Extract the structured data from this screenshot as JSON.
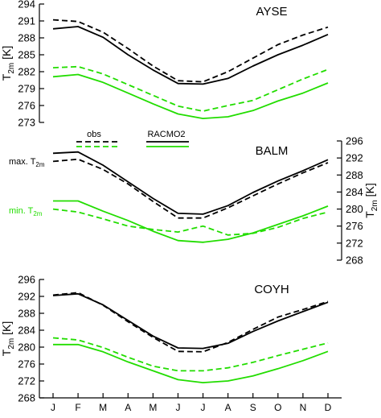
{
  "chart_data": {
    "type": "line",
    "categories": [
      "J",
      "F",
      "M",
      "A",
      "M",
      "J",
      "J",
      "A",
      "S",
      "O",
      "N",
      "D"
    ],
    "line_styles": {
      "obs": "dashed",
      "RACMO2": "solid",
      "max_color": "#000000",
      "min_color": "#22dd00"
    },
    "legend": {
      "obs": "obs",
      "racmo": "RACMO2",
      "max_label": "max. T",
      "max_sub": "2m",
      "min_label": "min. T",
      "min_sub": "2m"
    },
    "panels": [
      {
        "station": "AYSE",
        "axis_side": "left",
        "ylabel": "T",
        "ylabel_sub": "2m",
        "ylabel_unit": "[K]",
        "ylim": [
          273,
          294
        ],
        "yticks": [
          "273",
          "276",
          "279",
          "282",
          "285",
          "288",
          "291",
          "294"
        ],
        "series": [
          {
            "name": "obs",
            "variable": "max",
            "values": [
              291.2,
              290.9,
              289.0,
              286.1,
              283.0,
              280.4,
              280.2,
              282.0,
              284.4,
              286.8,
              288.5,
              289.9
            ]
          },
          {
            "name": "RACMO2",
            "variable": "max",
            "values": [
              289.6,
              290.0,
              288.1,
              285.0,
              282.3,
              279.9,
              279.8,
              280.8,
              283.0,
              285.0,
              286.7,
              288.6
            ]
          },
          {
            "name": "obs",
            "variable": "min",
            "values": [
              282.7,
              282.9,
              281.6,
              279.7,
              277.8,
              275.9,
              275.0,
              276.0,
              276.9,
              278.8,
              280.7,
              282.4
            ]
          },
          {
            "name": "RACMO2",
            "variable": "min",
            "values": [
              281.1,
              281.5,
              280.1,
              278.2,
              276.3,
              274.5,
              273.7,
              274.0,
              275.1,
              276.8,
              278.2,
              280.0
            ]
          }
        ]
      },
      {
        "station": "BALM",
        "axis_side": "right",
        "ylabel": "T",
        "ylabel_sub": "2m",
        "ylabel_unit": "[K]",
        "ylim": [
          268,
          296
        ],
        "yticks": [
          "268",
          "272",
          "276",
          "280",
          "284",
          "288",
          "292",
          "296"
        ],
        "series": [
          {
            "name": "obs",
            "variable": "max",
            "values": [
              291.2,
              291.7,
              289.3,
              285.9,
              281.8,
              277.9,
              277.9,
              280.3,
              283.1,
              285.9,
              288.5,
              290.9
            ]
          },
          {
            "name": "RACMO2",
            "variable": "max",
            "values": [
              293.1,
              293.4,
              290.3,
              286.4,
              282.5,
              279.0,
              278.8,
              280.8,
              283.9,
              286.6,
              289.0,
              291.6
            ]
          },
          {
            "name": "obs",
            "variable": "min",
            "values": [
              280.0,
              279.3,
              277.7,
              276.0,
              275.2,
              274.6,
              276.0,
              273.9,
              274.3,
              275.7,
              277.8,
              279.3
            ]
          },
          {
            "name": "RACMO2",
            "variable": "min",
            "values": [
              281.9,
              281.9,
              279.5,
              277.3,
              274.8,
              272.6,
              272.2,
              272.9,
              274.4,
              276.4,
              278.4,
              280.7
            ]
          }
        ]
      },
      {
        "station": "COYH",
        "axis_side": "left",
        "ylabel": "T",
        "ylabel_sub": "2m",
        "ylabel_unit": "[K]",
        "ylim": [
          268,
          296
        ],
        "yticks": [
          "268",
          "272",
          "276",
          "280",
          "284",
          "288",
          "292",
          "296"
        ],
        "series": [
          {
            "name": "obs",
            "variable": "max",
            "values": [
              292.3,
              292.9,
              289.9,
              286.0,
              282.3,
              279.0,
              278.9,
              281.1,
              284.2,
              287.1,
              288.9,
              290.8
            ]
          },
          {
            "name": "RACMO2",
            "variable": "max",
            "values": [
              292.2,
              292.6,
              290.0,
              286.3,
              282.6,
              279.8,
              279.7,
              280.9,
              283.7,
              286.2,
              288.4,
              290.6
            ]
          },
          {
            "name": "obs",
            "variable": "min",
            "values": [
              282.2,
              281.7,
              279.9,
              277.6,
              275.5,
              274.4,
              274.4,
              275.1,
              276.4,
              278.0,
              279.5,
              281.0
            ]
          },
          {
            "name": "RACMO2",
            "variable": "min",
            "values": [
              280.6,
              280.6,
              278.9,
              276.5,
              274.4,
              272.3,
              271.6,
              272.0,
              273.2,
              274.9,
              276.8,
              279.0
            ]
          }
        ]
      }
    ]
  }
}
